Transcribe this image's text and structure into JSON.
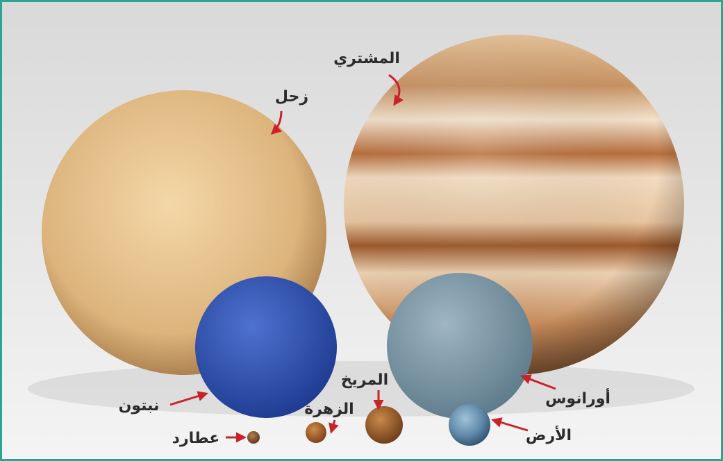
{
  "planets": [
    {
      "label": "المشتري"
    },
    {
      "label": "زحل"
    },
    {
      "label": "نبتون"
    },
    {
      "label": "أورانوس"
    },
    {
      "label": "المريخ"
    },
    {
      "label": "الزهرة"
    },
    {
      "label": "عطارد"
    },
    {
      "label": "الأرض"
    }
  ]
}
